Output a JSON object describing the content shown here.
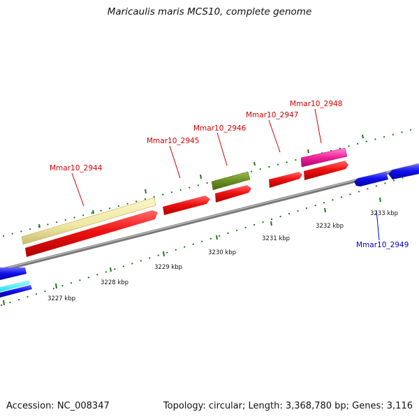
{
  "title": "Maricaulis maris MCS10, complete genome",
  "footer": {
    "accession": "Accession: NC_008347",
    "summary": "Topology: circular; Length: 3,368,780 bp; Genes: 3,116"
  },
  "tick_labels": [
    "3227 kbp",
    "3228 kbp",
    "3229 kbp",
    "3230 kbp",
    "3231 kbp",
    "3232 kbp",
    "3233 kbp"
  ],
  "gene_labels": [
    {
      "name": "Mmar10_2944",
      "color": "#d00000"
    },
    {
      "name": "Mmar10_2945",
      "color": "#d00000"
    },
    {
      "name": "Mmar10_2946",
      "color": "#d00000"
    },
    {
      "name": "Mmar10_2947",
      "color": "#d00000"
    },
    {
      "name": "Mmar10_2948",
      "color": "#d00000"
    },
    {
      "name": "Mmar10_2949",
      "color": "#0000cc"
    }
  ],
  "colors": {
    "cds_forward": "#ee1111",
    "cds_reverse": "#1111ee",
    "trna": "#ee2299",
    "misc": "#6b8e23",
    "gene_track": "#f0e8a0",
    "gc_skew": "#22ddee",
    "backbone": "#888888",
    "ticks": "#1a7a1a"
  }
}
